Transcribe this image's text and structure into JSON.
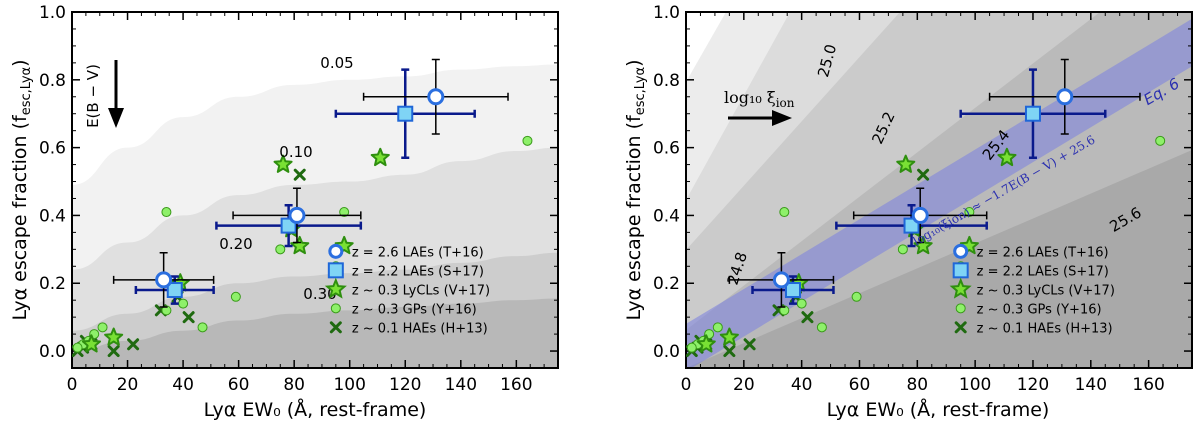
{
  "chart_data": [
    {
      "type": "scatter",
      "panel": "left",
      "xlabel": "Lyα EW₀ (Å, rest-frame)",
      "ylabel": "Lyα escape fraction (f",
      "ylabel_sub": "esc,Lyα",
      "ylabel_end": ")",
      "xlim": [
        0,
        175
      ],
      "ylim": [
        -0.05,
        1.0
      ],
      "xticks": [
        "0",
        "20",
        "40",
        "60",
        "80",
        "100",
        "120",
        "140",
        "160"
      ],
      "yticks": [
        "0.0",
        "0.2",
        "0.4",
        "0.6",
        "0.8",
        "1.0"
      ],
      "arrow_label": "E(B − V)",
      "contour_labels": [
        "0.05",
        "0.10",
        "0.20",
        "0.30"
      ],
      "contours": [
        {
          "label": "0.05",
          "fill": "#f2f2f2",
          "x": [
            0,
            20,
            40,
            60,
            80,
            100,
            120,
            140,
            160,
            175
          ],
          "y": [
            0.49,
            0.6,
            0.69,
            0.75,
            0.785,
            0.8,
            0.81,
            0.83,
            0.84,
            0.845
          ]
        },
        {
          "label": "0.10",
          "fill": "#e0e0e0",
          "x": [
            0,
            20,
            40,
            60,
            80,
            100,
            120,
            140,
            160,
            175
          ],
          "y": [
            0.24,
            0.32,
            0.4,
            0.46,
            0.49,
            0.5,
            0.52,
            0.56,
            0.59,
            0.6
          ]
        },
        {
          "label": "0.20",
          "fill": "#cdcdcd",
          "x": [
            0,
            20,
            40,
            60,
            80,
            100,
            120,
            140,
            160,
            175
          ],
          "y": [
            0.06,
            0.11,
            0.16,
            0.2,
            0.22,
            0.23,
            0.24,
            0.26,
            0.28,
            0.29
          ]
        },
        {
          "label": "0.30",
          "fill": "#b8b8b8",
          "x": [
            0,
            20,
            40,
            60,
            80,
            100,
            120,
            140,
            160,
            175
          ],
          "y": [
            0.0,
            0.03,
            0.06,
            0.09,
            0.11,
            0.12,
            0.13,
            0.14,
            0.15,
            0.155
          ]
        }
      ]
    },
    {
      "type": "scatter",
      "panel": "right",
      "xlabel": "Lyα EW₀ (Å, rest-frame)",
      "ylabel": "Lyα escape fraction (f",
      "ylabel_sub": "esc,Lyα",
      "ylabel_end": ")",
      "xlim": [
        0,
        175
      ],
      "ylim": [
        -0.05,
        1.0
      ],
      "xticks": [
        "0",
        "20",
        "40",
        "60",
        "80",
        "100",
        "120",
        "140",
        "160"
      ],
      "yticks": [
        "0.0",
        "0.2",
        "0.4",
        "0.6",
        "0.8",
        "1.0"
      ],
      "arrow_label": "log₁₀ ξ",
      "arrow_label_sub": "ion",
      "contour_labels": [
        "24.8",
        "25.0",
        "25.2",
        "25.4",
        "25.6"
      ],
      "band_label": "Eq. 6",
      "band_equation": "log₁₀(ξion) ≈ −1.7E(B − V) + 25.6",
      "band": {
        "x": [
          0,
          175
        ],
        "center": [
          0.01,
          0.91
        ],
        "halfwidth": 0.07
      },
      "log_xi_regions": [
        {
          "label": "24.8",
          "fill": "#ececec"
        },
        {
          "label": "25.0",
          "fill": "#dcdcdc"
        },
        {
          "label": "25.2",
          "fill": "#cbcbcb"
        },
        {
          "label": "25.4",
          "fill": "#bababa"
        },
        {
          "label": "25.6",
          "fill": "#a9a9a9"
        }
      ]
    }
  ],
  "series": {
    "LAEs_T16": {
      "name": "z = 2.6 LAEs (T+16)",
      "points": [
        {
          "x": 33,
          "y": 0.21,
          "xerr": 18,
          "yerr": 0.08
        },
        {
          "x": 81,
          "y": 0.4,
          "xerr": 23,
          "yerr": 0.08
        },
        {
          "x": 131,
          "y": 0.75,
          "xerr": 26,
          "yerr": 0.11
        }
      ]
    },
    "LAEs_S17": {
      "name": "z = 2.2 LAEs (S+17)",
      "points": [
        {
          "x": 37,
          "y": 0.18,
          "xerr": 14,
          "yerr": 0.04
        },
        {
          "x": 78,
          "y": 0.37,
          "xerr": 26,
          "yerr": 0.06
        },
        {
          "x": 120,
          "y": 0.7,
          "xerr": 25,
          "yerr": 0.13
        }
      ]
    },
    "LyCLs_V17": {
      "name": "z ~ 0.3 LyCLs (V+17)",
      "points": [
        {
          "x": 76,
          "y": 0.55
        },
        {
          "x": 111,
          "y": 0.57
        },
        {
          "x": 82,
          "y": 0.31
        },
        {
          "x": 98,
          "y": 0.31
        },
        {
          "x": 39,
          "y": 0.2
        },
        {
          "x": 15,
          "y": 0.04
        },
        {
          "x": 79,
          "y": 0.36
        },
        {
          "x": 7,
          "y": 0.02
        }
      ]
    },
    "GPs_Y16": {
      "name": "z ~ 0.3 GPs (Y+16)",
      "points": [
        {
          "x": 164,
          "y": 0.62
        },
        {
          "x": 34,
          "y": 0.41
        },
        {
          "x": 98,
          "y": 0.41
        },
        {
          "x": 75,
          "y": 0.3
        },
        {
          "x": 95,
          "y": 0.25
        },
        {
          "x": 59,
          "y": 0.16
        },
        {
          "x": 47,
          "y": 0.07
        },
        {
          "x": 40,
          "y": 0.14
        },
        {
          "x": 34,
          "y": 0.12
        },
        {
          "x": 11,
          "y": 0.07
        },
        {
          "x": 8,
          "y": 0.05
        },
        {
          "x": 4,
          "y": 0.02
        },
        {
          "x": 2,
          "y": 0.01
        },
        {
          "x": 6,
          "y": 0.03
        }
      ]
    },
    "HAEs_H13": {
      "name": "z ~ 0.1 HAEs (H+13)",
      "points": [
        {
          "x": 82,
          "y": 0.52
        },
        {
          "x": 38,
          "y": 0.16
        },
        {
          "x": 42,
          "y": 0.1
        },
        {
          "x": 32,
          "y": 0.12
        },
        {
          "x": 22,
          "y": 0.02
        },
        {
          "x": 15,
          "y": 0.0
        },
        {
          "x": 7,
          "y": 0.02
        },
        {
          "x": 4,
          "y": 0.01
        },
        {
          "x": 2,
          "y": 0.0
        },
        {
          "x": 5,
          "y": 0.03
        }
      ]
    }
  },
  "legend": [
    "z = 2.6 LAEs (T+16)",
    "z = 2.2 LAEs (S+17)",
    "z ~ 0.3 LyCLs (V+17)",
    "z ~ 0.3 GPs (Y+16)",
    "z ~ 0.1 HAEs (H+13)"
  ],
  "colors": {
    "lae_t": "#2b6fe0",
    "lae_s_fill": "#7fd4f5",
    "lae_s_edge": "#1f67d8",
    "star_fill": "#79e034",
    "star_edge": "#2f8f0f",
    "gp_fill": "#8ef06a",
    "gp_edge": "#3a9a1a",
    "hae": "#1f6a10",
    "errbar_t": "#000000",
    "errbar_s": "#0a1a8c",
    "band": "#7a7fe0"
  }
}
